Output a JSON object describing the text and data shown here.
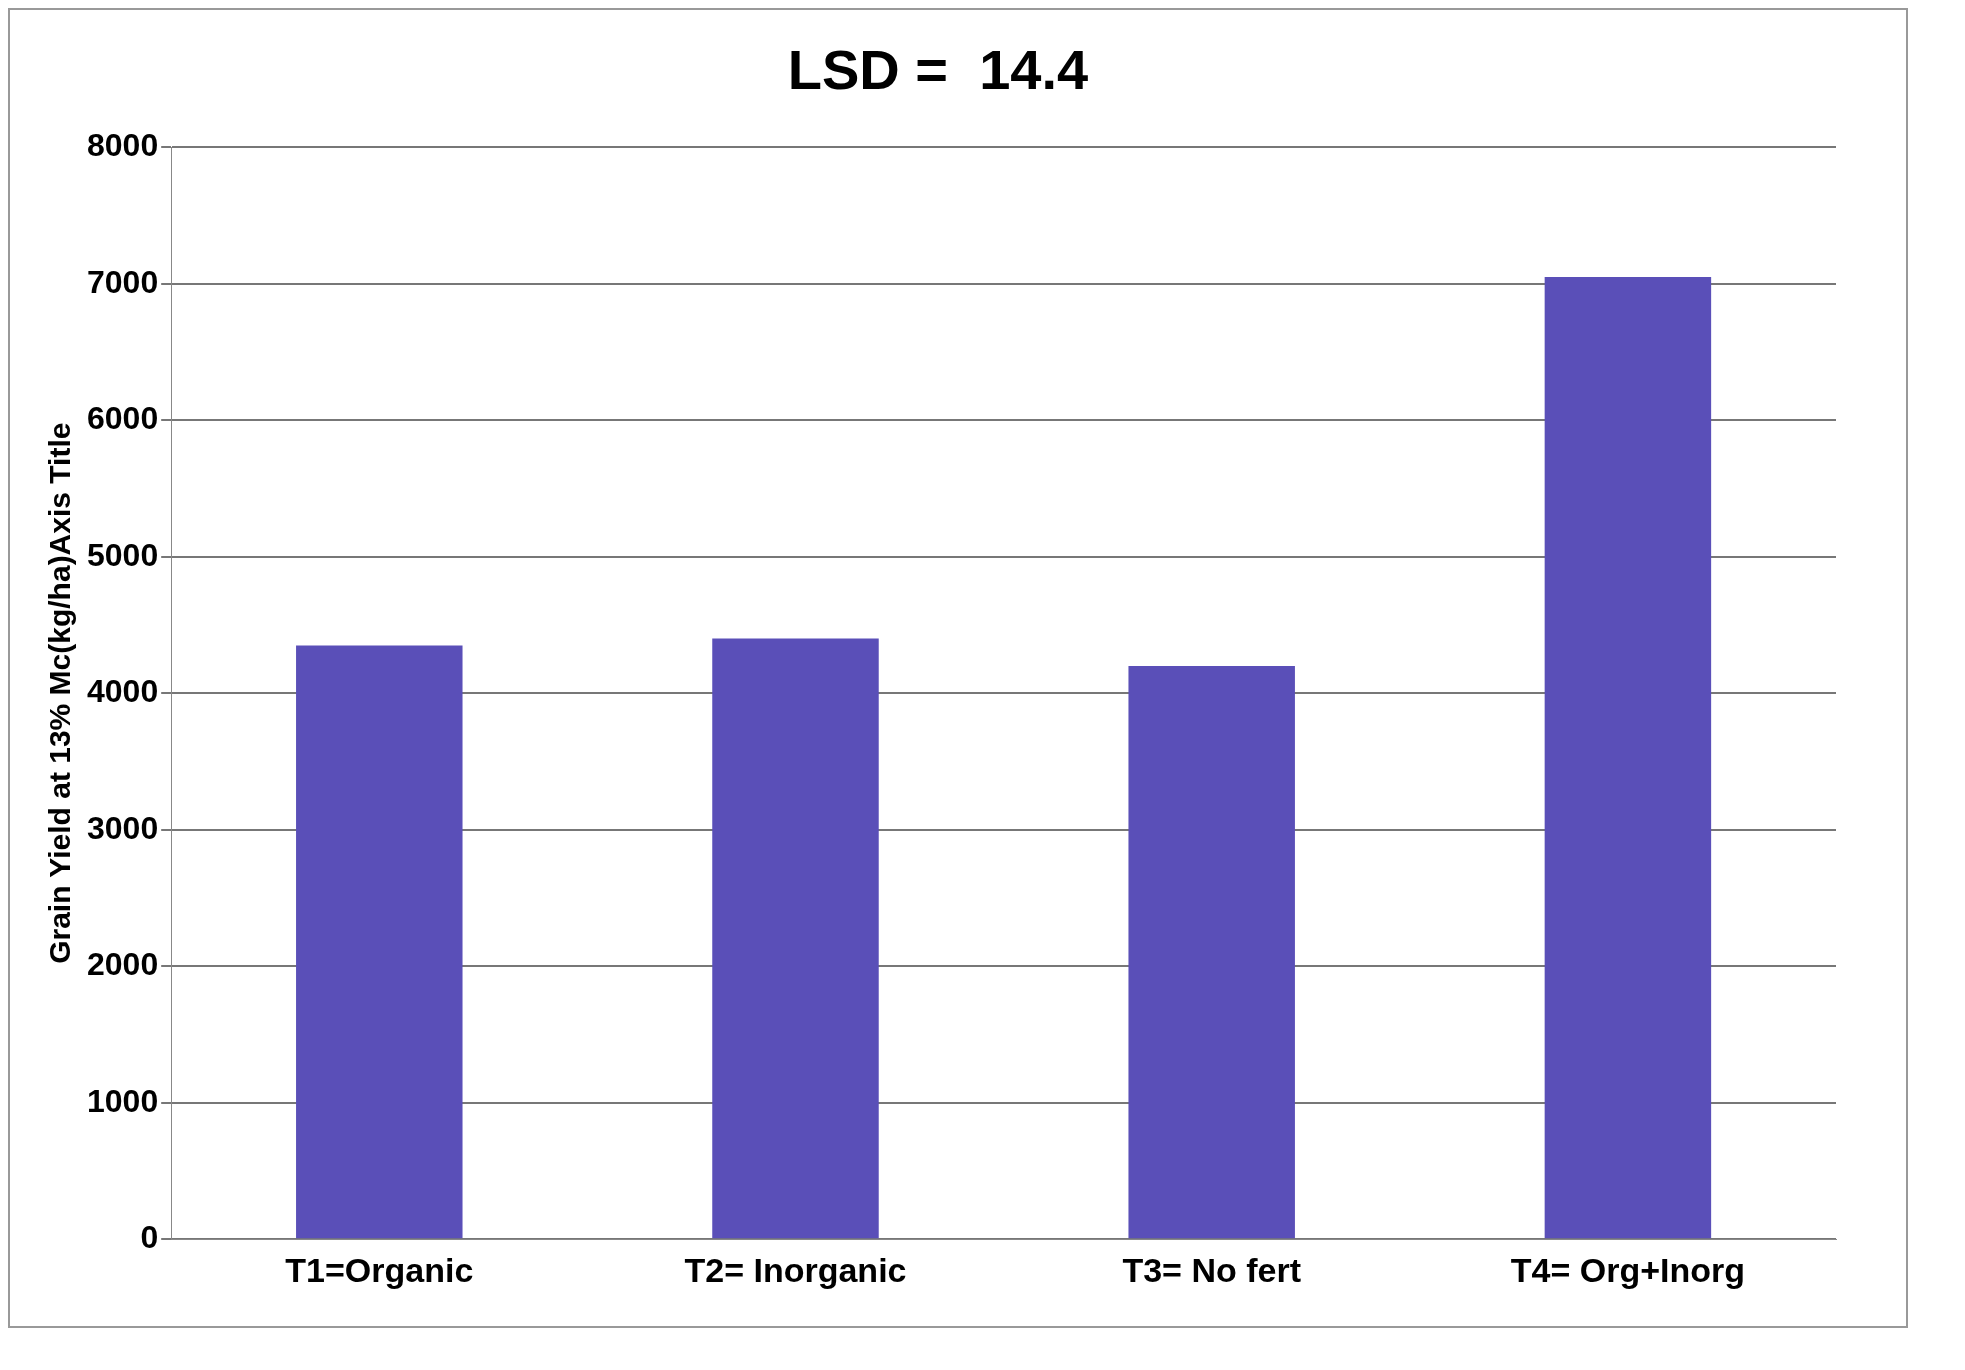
{
  "chart_data": {
    "type": "bar",
    "title": "LSD =  14.4",
    "ylabel": "Grain Yield at 13% Mc(kg/ha)Axis Title",
    "categories": [
      "T1=Organic",
      "T2= Inorganic",
      "T3= No fert",
      "T4= Org+Inorg"
    ],
    "values": [
      4350,
      4400,
      4200,
      7050
    ],
    "color": "#5a4fb8",
    "ylim": [
      0,
      8000
    ],
    "yticks": [
      0,
      1000,
      2000,
      3000,
      4000,
      5000,
      6000,
      7000,
      8000
    ],
    "grid": "y"
  }
}
